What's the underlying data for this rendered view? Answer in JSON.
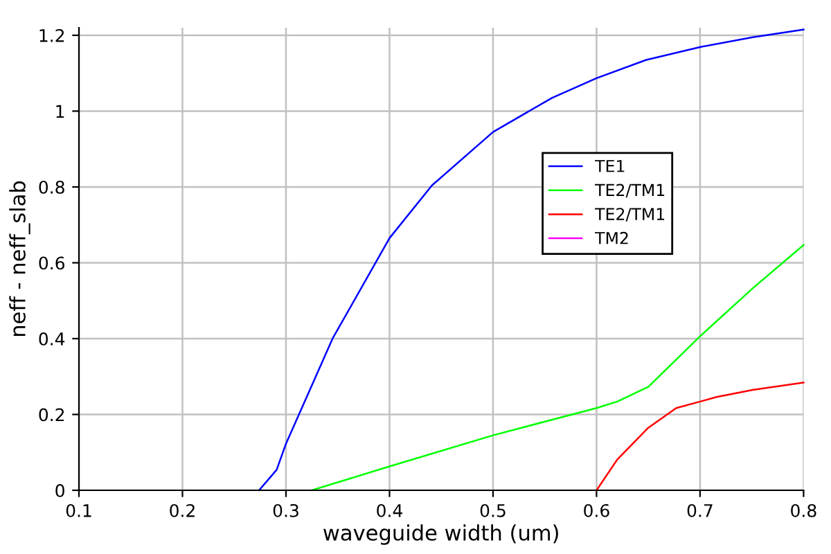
{
  "chart_data": {
    "type": "line",
    "xlabel": "waveguide width (um)",
    "ylabel": "neff - neff_slab",
    "xlim": [
      0.1,
      0.8
    ],
    "ylim": [
      0,
      1.22
    ],
    "xticks": [
      0.1,
      0.2,
      0.3,
      0.4,
      0.5,
      0.6,
      0.7,
      0.8
    ],
    "yticks": [
      0,
      0.2,
      0.4,
      0.6,
      0.8,
      1,
      1.2
    ],
    "grid": true,
    "legend": "right",
    "marker": "none",
    "line_style": "solid",
    "series": [
      {
        "name": "TE1",
        "color": "#0000ff",
        "x": [
          0.274,
          0.291,
          0.3,
          0.345,
          0.4,
          0.441,
          0.5,
          0.557,
          0.6,
          0.648,
          0.7,
          0.751,
          0.8
        ],
        "values": [
          0,
          0.054,
          0.123,
          0.4,
          0.665,
          0.804,
          0.945,
          1.035,
          1.087,
          1.135,
          1.169,
          1.195,
          1.215
        ]
      },
      {
        "name": "TE2/TM1",
        "color": "#00ff00",
        "x": [
          0.325,
          0.4,
          0.5,
          0.6,
          0.62,
          0.65,
          0.7,
          0.751,
          0.8
        ],
        "values": [
          0,
          0.063,
          0.145,
          0.217,
          0.234,
          0.273,
          0.406,
          0.533,
          0.647
        ]
      },
      {
        "name": "TE2/TM1",
        "color": "#ff0000",
        "x": [
          0.6,
          0.62,
          0.65,
          0.677,
          0.7,
          0.716,
          0.751,
          0.8
        ],
        "values": [
          0,
          0.081,
          0.165,
          0.217,
          0.234,
          0.246,
          0.265,
          0.284
        ]
      },
      {
        "name": "TM2",
        "color": "#ff00ff"
      }
    ]
  }
}
